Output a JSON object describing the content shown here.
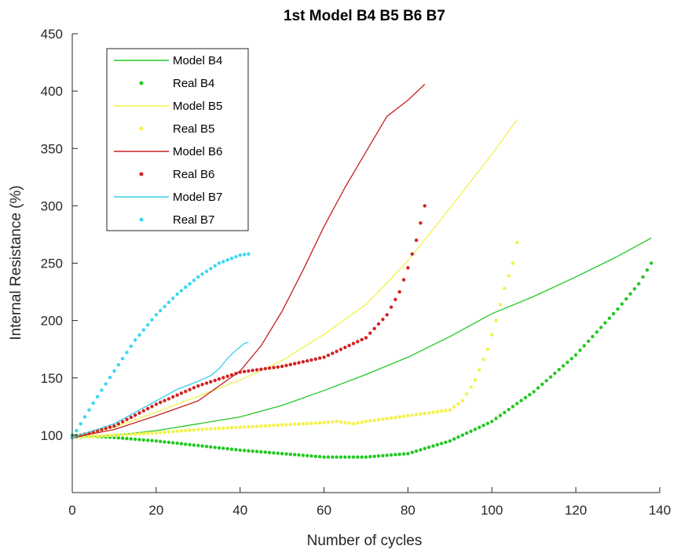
{
  "chart_data": {
    "type": "line",
    "title": "1st Model B4 B5 B6 B7",
    "xlabel": "Number of cycles",
    "ylabel": "Internal Resistance (%)",
    "xlim": [
      0,
      140
    ],
    "ylim": [
      50,
      450
    ],
    "xticks": [
      "0",
      "20",
      "40",
      "60",
      "80",
      "100",
      "120",
      "140"
    ],
    "yticks": [
      "100",
      "150",
      "200",
      "250",
      "300",
      "350",
      "400",
      "450"
    ],
    "grid": false,
    "legend_position": "top-left",
    "series": [
      {
        "name": "Model B4",
        "style": "line",
        "color": "#22c822",
        "x": [
          0,
          10,
          20,
          30,
          40,
          50,
          60,
          70,
          80,
          90,
          100,
          110,
          120,
          130,
          135,
          138
        ],
        "y": [
          98,
          100,
          104,
          110,
          116,
          126,
          139,
          153,
          168,
          186,
          206,
          221,
          238,
          256,
          266,
          272
        ]
      },
      {
        "name": "Real B4",
        "style": "dots",
        "color": "#22c822",
        "x": [
          0,
          10,
          20,
          30,
          40,
          50,
          60,
          70,
          80,
          90,
          100,
          110,
          120,
          130,
          135,
          138
        ],
        "y": [
          100,
          98,
          95,
          91,
          87,
          84,
          81,
          81,
          84,
          95,
          112,
          138,
          170,
          210,
          232,
          250
        ]
      },
      {
        "name": "Model B5",
        "style": "line",
        "color": "#f2f24a",
        "x": [
          0,
          10,
          20,
          30,
          40,
          50,
          60,
          70,
          80,
          90,
          100,
          106
        ],
        "y": [
          98,
          107,
          120,
          134,
          148,
          165,
          188,
          214,
          252,
          298,
          345,
          375
        ]
      },
      {
        "name": "Real B5",
        "style": "dots",
        "color": "#f2f24a",
        "x": [
          0,
          10,
          20,
          30,
          40,
          50,
          60,
          63,
          67,
          70,
          80,
          90,
          93,
          96,
          99,
          101,
          103,
          105,
          106
        ],
        "y": [
          98,
          100,
          102,
          105,
          107,
          109,
          111,
          112,
          110,
          112,
          117,
          122,
          130,
          148,
          175,
          200,
          228,
          250,
          268
        ]
      },
      {
        "name": "Model B6",
        "style": "line",
        "color": "#c42020",
        "x": [
          0,
          10,
          20,
          30,
          40,
          45,
          50,
          55,
          60,
          65,
          70,
          75,
          80,
          84
        ],
        "y": [
          98,
          105,
          117,
          130,
          156,
          178,
          208,
          244,
          282,
          316,
          347,
          378,
          392,
          406
        ]
      },
      {
        "name": "Real B6",
        "style": "dots",
        "color": "#d42222",
        "x": [
          0,
          10,
          20,
          30,
          40,
          50,
          60,
          70,
          75,
          78,
          80,
          82,
          84
        ],
        "y": [
          98,
          108,
          127,
          143,
          155,
          160,
          168,
          185,
          205,
          225,
          246,
          270,
          300
        ]
      },
      {
        "name": "Model B7",
        "style": "line",
        "color": "#38cfe8",
        "x": [
          0,
          5,
          10,
          15,
          20,
          25,
          30,
          33,
          35,
          37,
          39,
          41,
          42
        ],
        "y": [
          98,
          104,
          110,
          120,
          130,
          140,
          147,
          152,
          158,
          167,
          174,
          180,
          181
        ]
      },
      {
        "name": "Real B7",
        "style": "dots",
        "color": "#38d8f0",
        "x": [
          0,
          5,
          10,
          15,
          20,
          25,
          30,
          35,
          40,
          42
        ],
        "y": [
          98,
          128,
          156,
          183,
          205,
          223,
          238,
          250,
          257,
          258
        ]
      }
    ]
  }
}
